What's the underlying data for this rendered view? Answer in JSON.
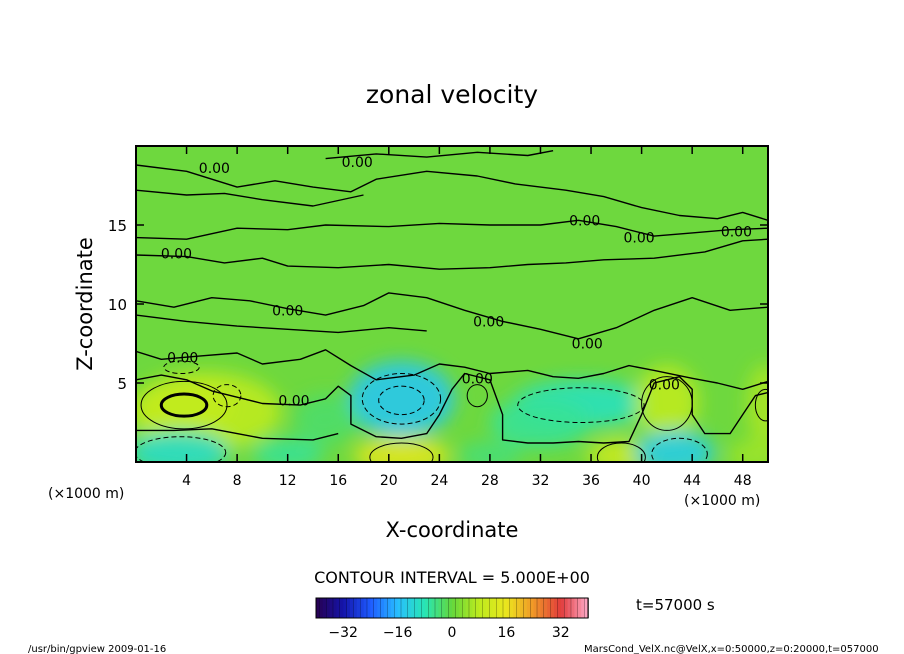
{
  "chart_data": {
    "type": "contour",
    "title": "zonal velocity",
    "xlabel": "X-coordinate",
    "ylabel": "Z-coordinate",
    "x_unit_label": "(×1000 m)",
    "y_unit_label": "(×1000 m)",
    "xlim": [
      0,
      50
    ],
    "ylim": [
      0,
      20
    ],
    "x_ticks": [
      4,
      8,
      12,
      16,
      20,
      24,
      28,
      32,
      36,
      40,
      44,
      48
    ],
    "x_tick_labels": [
      "4",
      "8",
      "12",
      "16",
      "20",
      "24",
      "28",
      "32",
      "36",
      "40",
      "44",
      "48"
    ],
    "y_ticks": [
      5,
      10,
      15
    ],
    "y_tick_labels": [
      "5",
      "10",
      "15"
    ],
    "contour_interval_text": "CONTOUR INTERVAL = 5.000E+00",
    "contour_labels": [
      {
        "x": 6.2,
        "z": 18.6,
        "text": "0.00"
      },
      {
        "x": 17.5,
        "z": 19.0,
        "text": "0.00"
      },
      {
        "x": 35.5,
        "z": 15.3,
        "text": "0.00"
      },
      {
        "x": 39.8,
        "z": 14.2,
        "text": "0.00"
      },
      {
        "x": 47.5,
        "z": 14.6,
        "text": "0.00"
      },
      {
        "x": 3.2,
        "z": 13.2,
        "text": "0.00"
      },
      {
        "x": 12.0,
        "z": 9.6,
        "text": "0.00"
      },
      {
        "x": 27.9,
        "z": 8.9,
        "text": "0.00"
      },
      {
        "x": 35.7,
        "z": 7.5,
        "text": "0.00"
      },
      {
        "x": 3.7,
        "z": 6.6,
        "text": "0.00"
      },
      {
        "x": 27.0,
        "z": 5.3,
        "text": "0.00"
      },
      {
        "x": 41.8,
        "z": 4.9,
        "text": "0.00"
      },
      {
        "x": 12.5,
        "z": 3.9,
        "text": "0.00"
      }
    ],
    "field_blobs": [
      {
        "x": 3.8,
        "z": 3.6,
        "rx": 3.8,
        "rz": 1.7,
        "u": 16
      },
      {
        "x": 5.5,
        "z": 3.2,
        "rx": 6.0,
        "rz": 2.5,
        "u": 8
      },
      {
        "x": 21.0,
        "z": 4.0,
        "rx": 4.2,
        "rz": 2.4,
        "u": -14
      },
      {
        "x": 35.3,
        "z": 3.7,
        "rx": 5.5,
        "rz": 1.5,
        "u": -9
      },
      {
        "x": 42.0,
        "z": 3.8,
        "rx": 2.5,
        "rz": 2.3,
        "u": 8
      },
      {
        "x": 49.8,
        "z": 3.6,
        "rx": 1.5,
        "rz": 2.6,
        "u": 6
      },
      {
        "x": 3.4,
        "z": 0.6,
        "rx": 4.0,
        "rz": 1.4,
        "u": -10
      },
      {
        "x": 12.0,
        "z": 0.5,
        "rx": 2.8,
        "rz": 1.0,
        "u": -6
      },
      {
        "x": 21.0,
        "z": 0.4,
        "rx": 3.8,
        "rz": 1.2,
        "u": 14
      },
      {
        "x": 28.0,
        "z": 0.4,
        "rx": 2.5,
        "rz": 0.9,
        "u": -4
      },
      {
        "x": 38.4,
        "z": 0.4,
        "rx": 2.7,
        "rz": 1.1,
        "u": 10
      },
      {
        "x": 42.6,
        "z": 0.6,
        "rx": 3.2,
        "rz": 1.4,
        "u": -13
      },
      {
        "x": 49.0,
        "z": 0.4,
        "rx": 2.2,
        "rz": 1.0,
        "u": 5
      },
      {
        "x": 32.0,
        "z": 2.5,
        "rx": 4.0,
        "rz": 1.6,
        "u": -6
      },
      {
        "x": 15.0,
        "z": 2.7,
        "rx": 2.5,
        "rz": 1.6,
        "u": -3
      }
    ],
    "dashed_contours": [
      {
        "x": 21.0,
        "z": 4.0,
        "rx": 3.1,
        "rz": 1.6
      },
      {
        "x": 21.0,
        "z": 3.9,
        "rx": 1.8,
        "rz": 0.9
      },
      {
        "x": 35.2,
        "z": 3.6,
        "rx": 5.0,
        "rz": 1.1
      },
      {
        "x": 43.0,
        "z": 0.5,
        "rx": 2.2,
        "rz": 1.0
      },
      {
        "x": 3.5,
        "z": 0.6,
        "rx": 3.6,
        "rz": 1.0
      },
      {
        "x": 3.6,
        "z": 6.0,
        "rx": 1.4,
        "rz": 0.4
      },
      {
        "x": 7.2,
        "z": 4.2,
        "rx": 1.1,
        "rz": 0.7
      }
    ],
    "solid_contours": [
      {
        "x": 3.8,
        "z": 3.6,
        "rx": 1.8,
        "rz": 0.7,
        "w": 3
      },
      {
        "x": 3.8,
        "z": 3.6,
        "rx": 3.4,
        "rz": 1.5,
        "w": 1
      },
      {
        "x": 42.0,
        "z": 3.7,
        "rx": 2.0,
        "rz": 1.7,
        "w": 1
      },
      {
        "x": 27.0,
        "z": 4.2,
        "rx": 0.8,
        "rz": 0.7,
        "w": 1
      },
      {
        "x": 21.0,
        "z": 0.3,
        "rx": 2.5,
        "rz": 0.9,
        "w": 1
      },
      {
        "x": 38.4,
        "z": 0.3,
        "rx": 1.9,
        "rz": 0.9,
        "w": 1
      },
      {
        "x": 49.8,
        "z": 3.6,
        "rx": 0.8,
        "rz": 1.0,
        "w": 1
      }
    ],
    "zero_lines": [
      [
        [
          0,
          18.8
        ],
        [
          4,
          18.4
        ],
        [
          8,
          17.4
        ],
        [
          11,
          17.8
        ],
        [
          14,
          17.4
        ],
        [
          17,
          17.1
        ],
        [
          19,
          17.9
        ],
        [
          23,
          18.4
        ],
        [
          27,
          18.1
        ],
        [
          30,
          17.6
        ],
        [
          34,
          17.2
        ],
        [
          37,
          16.8
        ],
        [
          40,
          16.1
        ],
        [
          43,
          15.6
        ],
        [
          46,
          15.4
        ],
        [
          48,
          15.8
        ],
        [
          50,
          15.3
        ]
      ],
      [
        [
          0,
          17.2
        ],
        [
          4,
          16.9
        ],
        [
          7,
          17.0
        ],
        [
          10,
          16.6
        ],
        [
          14,
          16.2
        ],
        [
          18,
          16.9
        ]
      ],
      [
        [
          15,
          19.2
        ],
        [
          19,
          19.5
        ],
        [
          23,
          19.3
        ],
        [
          27,
          19.6
        ],
        [
          31,
          19.4
        ],
        [
          33,
          19.7
        ]
      ],
      [
        [
          0,
          14.2
        ],
        [
          4,
          14.1
        ],
        [
          8,
          14.8
        ],
        [
          12,
          14.7
        ],
        [
          15,
          15.0
        ],
        [
          20,
          14.9
        ],
        [
          24,
          15.1
        ],
        [
          28,
          15.0
        ],
        [
          32,
          15.0
        ],
        [
          35,
          15.3
        ],
        [
          38,
          14.9
        ],
        [
          41,
          14.3
        ],
        [
          44,
          14.5
        ],
        [
          47,
          14.7
        ],
        [
          50,
          14.8
        ]
      ],
      [
        [
          0,
          13.1
        ],
        [
          4,
          13.0
        ],
        [
          7,
          12.6
        ],
        [
          10,
          12.9
        ],
        [
          12,
          12.4
        ],
        [
          16,
          12.3
        ],
        [
          20,
          12.5
        ],
        [
          24,
          12.2
        ],
        [
          28,
          12.3
        ],
        [
          31,
          12.5
        ],
        [
          34,
          12.6
        ],
        [
          37,
          12.8
        ],
        [
          41,
          12.9
        ],
        [
          45,
          13.3
        ],
        [
          48,
          14.0
        ],
        [
          50,
          14.1
        ]
      ],
      [
        [
          0,
          10.2
        ],
        [
          3,
          9.8
        ],
        [
          6,
          10.4
        ],
        [
          9,
          10.2
        ],
        [
          12,
          9.7
        ],
        [
          15,
          9.3
        ],
        [
          18,
          9.9
        ],
        [
          20,
          10.7
        ],
        [
          23,
          10.4
        ],
        [
          26,
          9.6
        ],
        [
          29,
          8.9
        ],
        [
          32,
          8.4
        ],
        [
          35,
          7.8
        ],
        [
          38,
          8.5
        ],
        [
          41,
          9.6
        ],
        [
          44,
          10.4
        ],
        [
          47,
          9.6
        ],
        [
          50,
          9.8
        ]
      ],
      [
        [
          0,
          9.3
        ],
        [
          4,
          8.9
        ],
        [
          8,
          8.6
        ],
        [
          12,
          8.4
        ],
        [
          16,
          8.2
        ],
        [
          20,
          8.5
        ],
        [
          23,
          8.3
        ]
      ],
      [
        [
          0,
          7.0
        ],
        [
          2,
          6.5
        ],
        [
          5,
          6.7
        ],
        [
          8,
          6.9
        ],
        [
          10,
          6.2
        ],
        [
          13,
          6.5
        ],
        [
          15,
          7.1
        ],
        [
          17,
          6.1
        ],
        [
          19,
          5.2
        ],
        [
          22,
          5.5
        ],
        [
          24,
          6.2
        ],
        [
          26,
          6.0
        ],
        [
          28,
          5.6
        ],
        [
          31,
          5.8
        ],
        [
          33,
          5.4
        ],
        [
          35,
          5.3
        ],
        [
          37,
          5.6
        ],
        [
          39,
          6.1
        ],
        [
          41,
          5.8
        ],
        [
          44,
          5.3
        ],
        [
          46,
          5.0
        ],
        [
          48,
          4.6
        ],
        [
          50,
          5.1
        ]
      ],
      [
        [
          0,
          5.2
        ],
        [
          2,
          5.5
        ],
        [
          4,
          5.2
        ],
        [
          6,
          4.5
        ],
        [
          8,
          4.1
        ],
        [
          10,
          3.7
        ],
        [
          13,
          3.6
        ],
        [
          15,
          4.0
        ],
        [
          16,
          4.8
        ],
        [
          17,
          4.2
        ],
        [
          17,
          2.4
        ],
        [
          19,
          1.6
        ],
        [
          21,
          1.5
        ],
        [
          23,
          1.8
        ],
        [
          24,
          3.0
        ],
        [
          25,
          4.6
        ],
        [
          26,
          5.6
        ],
        [
          28,
          5.2
        ],
        [
          29,
          3.0
        ],
        [
          29,
          1.4
        ],
        [
          31,
          1.2
        ],
        [
          33,
          1.2
        ],
        [
          35,
          1.3
        ],
        [
          37,
          1.2
        ],
        [
          39,
          1.3
        ],
        [
          40,
          3.0
        ],
        [
          41,
          5.0
        ],
        [
          43,
          5.4
        ],
        [
          44,
          4.6
        ],
        [
          44,
          3.0
        ],
        [
          45,
          1.8
        ],
        [
          47,
          1.8
        ],
        [
          48,
          3.0
        ],
        [
          49,
          4.2
        ],
        [
          50,
          4.4
        ]
      ],
      [
        [
          0,
          2.0
        ],
        [
          3,
          2.0
        ],
        [
          6,
          2.1
        ],
        [
          8,
          1.8
        ],
        [
          10,
          1.5
        ],
        [
          14,
          1.4
        ],
        [
          16,
          1.8
        ]
      ]
    ],
    "colorbar": {
      "min": -40,
      "max": 40,
      "tick_values": [
        -32,
        -16,
        0,
        16,
        32
      ],
      "tick_labels": [
        "−32",
        "−16",
        "0",
        "16",
        "32"
      ]
    },
    "time_label": "t=57000 s",
    "footer_left": "/usr/bin/gpview   2009-01-16",
    "footer_right": "MarsCond_VelX.nc@VelX,x=0:50000,z=0:20000,t=057000"
  }
}
